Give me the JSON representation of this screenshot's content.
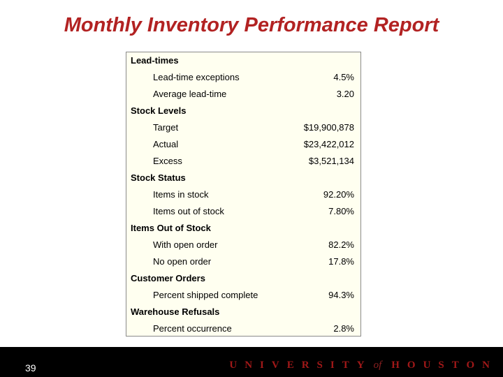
{
  "title": "Monthly Inventory Performance Report",
  "sections": [
    {
      "header": "Lead-times",
      "rows": [
        {
          "label": "Lead-time exceptions",
          "value": "4.5%"
        },
        {
          "label": "Average lead-time",
          "value": "3.20"
        }
      ]
    },
    {
      "header": "Stock Levels",
      "rows": [
        {
          "label": "Target",
          "value": "$19,900,878"
        },
        {
          "label": "Actual",
          "value": "$23,422,012"
        },
        {
          "label": "Excess",
          "value": "$3,521,134"
        }
      ]
    },
    {
      "header": "Stock Status",
      "rows": [
        {
          "label": "Items in stock",
          "value": "92.20%"
        },
        {
          "label": "Items out of stock",
          "value": "7.80%"
        }
      ]
    },
    {
      "header": "Items Out of Stock",
      "rows": [
        {
          "label": "With open order",
          "value": "82.2%"
        },
        {
          "label": "No open order",
          "value": "17.8%"
        }
      ]
    },
    {
      "header": "Customer Orders",
      "rows": [
        {
          "label": "Percent shipped complete",
          "value": "94.3%"
        }
      ]
    },
    {
      "header": "Warehouse Refusals",
      "rows": [
        {
          "label": "Percent occurrence",
          "value": "2.8%"
        }
      ]
    }
  ],
  "footer": {
    "page_number": "39",
    "logo": {
      "word1": "UNIVERSITY",
      "word2": "of",
      "word3": "HOUSTON"
    }
  },
  "colors": {
    "title": "#b22222",
    "report_background": "#fffff0",
    "footer_background": "#000000",
    "logo": "#a01818"
  }
}
